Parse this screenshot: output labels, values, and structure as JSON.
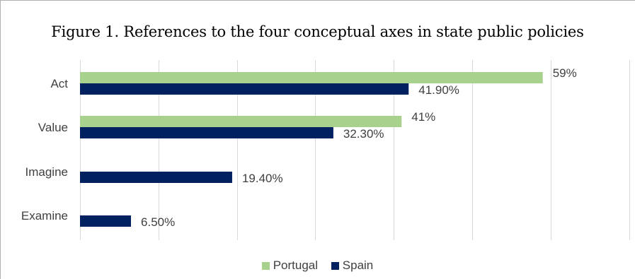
{
  "chart_data": {
    "type": "bar",
    "orientation": "horizontal",
    "title": "Figure 1. References to the four conceptual axes in state public policies",
    "categories": [
      "Act",
      "Value",
      "Imagine",
      "Examine"
    ],
    "series": [
      {
        "name": "Portugal",
        "color": "#a9d18e",
        "values": [
          59,
          41,
          null,
          null
        ],
        "labels": [
          "59%",
          "41%",
          "",
          ""
        ]
      },
      {
        "name": "Spain",
        "color": "#002060",
        "values": [
          41.9,
          32.3,
          19.4,
          6.5
        ],
        "labels": [
          "41.90%",
          "32.30%",
          "19.40%",
          "6.50%"
        ]
      }
    ],
    "xlim": [
      0,
      70
    ],
    "x_gridlines_step": 10,
    "grid": true,
    "legend_position": "bottom"
  }
}
